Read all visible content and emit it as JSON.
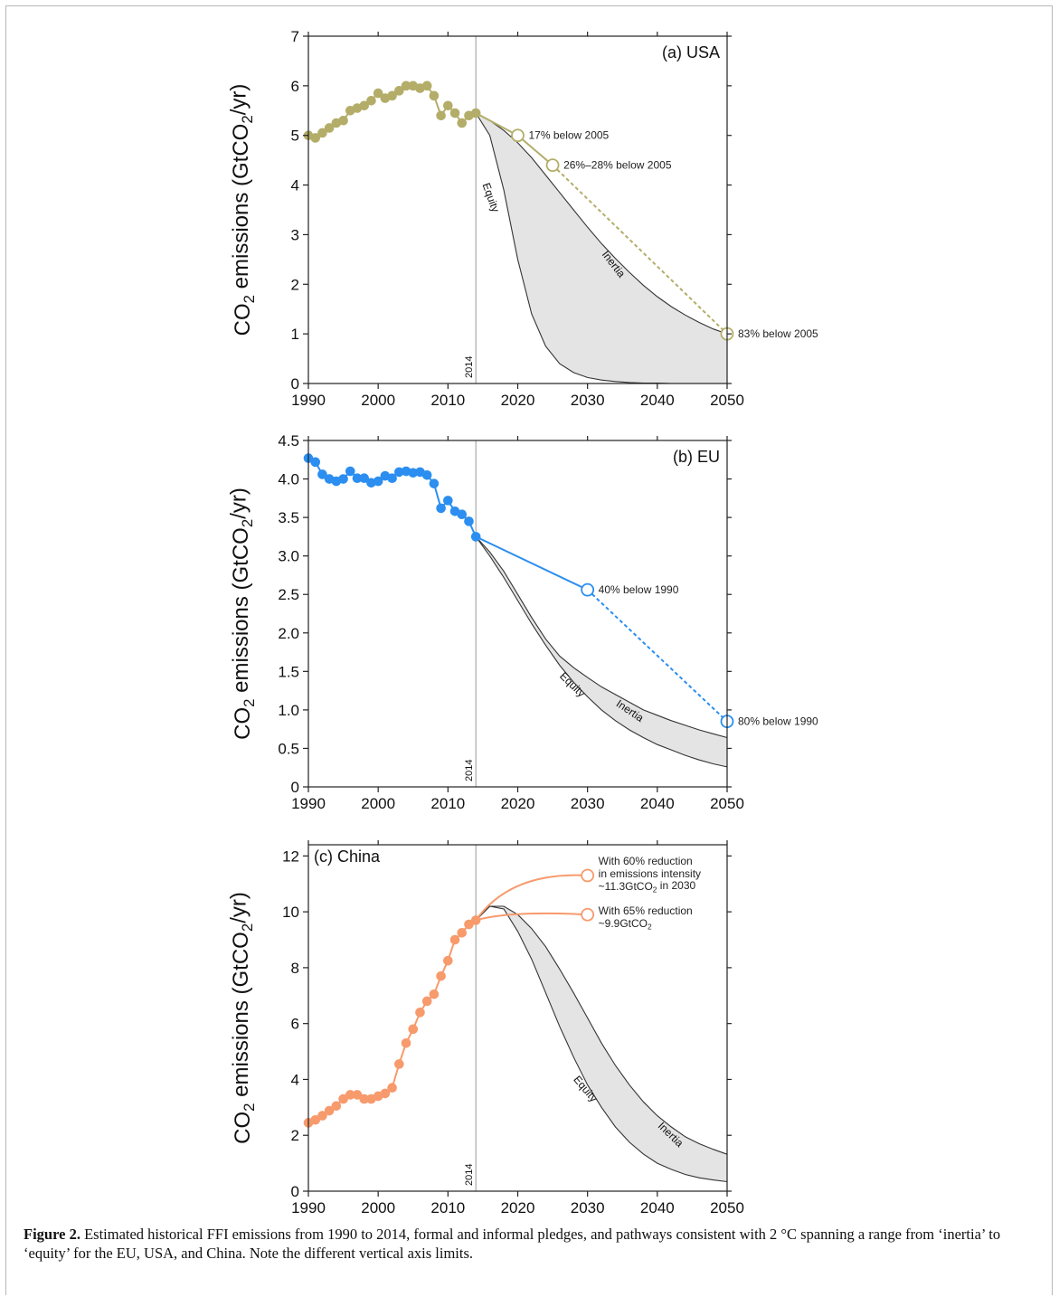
{
  "chart_data": [
    {
      "type": "line",
      "panel_label": "(a) USA",
      "ylabel": "CO₂ emissions (GtCO₂/yr)",
      "xlim": [
        1990,
        2050
      ],
      "ylim": [
        0,
        7
      ],
      "xticks": [
        1990,
        2000,
        2010,
        2020,
        2030,
        2040,
        2050
      ],
      "yticks": [
        0,
        1,
        2,
        3,
        4,
        5,
        6,
        7
      ],
      "ytick_labels": [
        "0",
        "1",
        "2",
        "3",
        "4",
        "5",
        "6",
        "7"
      ],
      "marker_year": 2014,
      "marker_label": "2014",
      "color": "#b3ad69",
      "history": {
        "x": [
          1990,
          1991,
          1992,
          1993,
          1994,
          1995,
          1996,
          1997,
          1998,
          1999,
          2000,
          2001,
          2002,
          2003,
          2004,
          2005,
          2006,
          2007,
          2008,
          2009,
          2010,
          2011,
          2012,
          2013,
          2014
        ],
        "y": [
          5.0,
          4.95,
          5.05,
          5.15,
          5.25,
          5.3,
          5.5,
          5.55,
          5.6,
          5.7,
          5.85,
          5.75,
          5.8,
          5.9,
          6.0,
          6.0,
          5.95,
          6.0,
          5.8,
          5.4,
          5.6,
          5.45,
          5.25,
          5.4,
          5.45
        ]
      },
      "pledges": [
        {
          "year": 2020,
          "value": 5.0,
          "label": "17% below 2005",
          "style": "solid"
        },
        {
          "year": 2025,
          "value": 4.4,
          "label": "26%–28% below 2005",
          "style": "solid"
        },
        {
          "year": 2050,
          "value": 1.0,
          "label": "83% below 2005",
          "style": "dashed"
        }
      ],
      "inertia": {
        "x": [
          2014,
          2016,
          2018,
          2020,
          2022,
          2024,
          2026,
          2028,
          2030,
          2032,
          2034,
          2036,
          2038,
          2040,
          2042,
          2044,
          2046,
          2048,
          2050
        ],
        "y": [
          5.45,
          5.3,
          5.1,
          4.85,
          4.55,
          4.2,
          3.85,
          3.5,
          3.15,
          2.82,
          2.52,
          2.24,
          1.98,
          1.75,
          1.55,
          1.38,
          1.23,
          1.1,
          1.0
        ]
      },
      "equity": {
        "x": [
          2014,
          2016,
          2018,
          2020,
          2022,
          2024,
          2026,
          2028,
          2030,
          2032,
          2034,
          2036,
          2038,
          2040,
          2042,
          2044,
          2046,
          2048,
          2050
        ],
        "y": [
          5.45,
          5.0,
          3.9,
          2.5,
          1.4,
          0.75,
          0.4,
          0.22,
          0.12,
          0.07,
          0.04,
          0.02,
          0.01,
          0.01,
          0.0,
          0.0,
          0.0,
          0.0,
          0.0
        ]
      },
      "inertia_label": "Inertia",
      "equity_label": "Equity"
    },
    {
      "type": "line",
      "panel_label": "(b) EU",
      "ylabel": "CO₂ emissions (GtCO₂/yr)",
      "xlim": [
        1990,
        2050
      ],
      "ylim": [
        0,
        4.5
      ],
      "xticks": [
        1990,
        2000,
        2010,
        2020,
        2030,
        2040,
        2050
      ],
      "yticks": [
        0,
        0.5,
        1.0,
        1.5,
        2.0,
        2.5,
        3.0,
        3.5,
        4.0,
        4.5
      ],
      "ytick_labels": [
        "0",
        "0.5",
        "1.0",
        "1.5",
        "2.0",
        "2.5",
        "3.0",
        "3.5",
        "4.0",
        "4.5"
      ],
      "marker_year": 2014,
      "marker_label": "2014",
      "color": "#2b8ef0",
      "history": {
        "x": [
          1990,
          1991,
          1992,
          1993,
          1994,
          1995,
          1996,
          1997,
          1998,
          1999,
          2000,
          2001,
          2002,
          2003,
          2004,
          2005,
          2006,
          2007,
          2008,
          2009,
          2010,
          2011,
          2012,
          2013,
          2014
        ],
        "y": [
          4.27,
          4.22,
          4.06,
          4.0,
          3.97,
          4.0,
          4.1,
          4.01,
          4.01,
          3.95,
          3.97,
          4.04,
          4.01,
          4.09,
          4.1,
          4.08,
          4.09,
          4.05,
          3.94,
          3.62,
          3.72,
          3.58,
          3.54,
          3.45,
          3.25
        ]
      },
      "pledges": [
        {
          "year": 2030,
          "value": 2.56,
          "label": "40% below 1990",
          "style": "solid"
        },
        {
          "year": 2050,
          "value": 0.85,
          "label": "80% below 1990",
          "style": "dashed"
        }
      ],
      "inertia": {
        "x": [
          2014,
          2016,
          2018,
          2020,
          2022,
          2024,
          2026,
          2028,
          2030,
          2032,
          2034,
          2036,
          2038,
          2040,
          2042,
          2044,
          2046,
          2048,
          2050
        ],
        "y": [
          3.25,
          3.05,
          2.8,
          2.5,
          2.2,
          1.92,
          1.7,
          1.55,
          1.42,
          1.3,
          1.2,
          1.1,
          1.0,
          0.93,
          0.86,
          0.8,
          0.74,
          0.69,
          0.64
        ]
      },
      "equity": {
        "x": [
          2014,
          2016,
          2018,
          2020,
          2022,
          2024,
          2026,
          2028,
          2030,
          2032,
          2034,
          2036,
          2038,
          2040,
          2042,
          2044,
          2046,
          2048,
          2050
        ],
        "y": [
          3.25,
          3.0,
          2.72,
          2.42,
          2.12,
          1.84,
          1.58,
          1.36,
          1.17,
          1.0,
          0.86,
          0.74,
          0.64,
          0.55,
          0.48,
          0.41,
          0.35,
          0.3,
          0.26
        ]
      },
      "inertia_label": "Inertia",
      "equity_label": "Equity"
    },
    {
      "type": "line",
      "panel_label": "(c) China",
      "ylabel": "CO₂ emissions (GtCO₂/yr)",
      "xlim": [
        1990,
        2050
      ],
      "ylim": [
        0,
        12.4
      ],
      "xticks": [
        1990,
        2000,
        2010,
        2020,
        2030,
        2040,
        2050
      ],
      "yticks": [
        0,
        2,
        4,
        6,
        8,
        10,
        12
      ],
      "ytick_labels": [
        "0",
        "2",
        "4",
        "6",
        "8",
        "10",
        "12"
      ],
      "marker_year": 2014,
      "marker_label": "2014",
      "color": "#f79a6c",
      "history": {
        "x": [
          1990,
          1991,
          1992,
          1993,
          1994,
          1995,
          1996,
          1997,
          1998,
          1999,
          2000,
          2001,
          2002,
          2003,
          2004,
          2005,
          2006,
          2007,
          2008,
          2009,
          2010,
          2011,
          2012,
          2013,
          2014
        ],
        "y": [
          2.45,
          2.55,
          2.7,
          2.88,
          3.05,
          3.3,
          3.45,
          3.45,
          3.3,
          3.3,
          3.4,
          3.5,
          3.7,
          4.55,
          5.3,
          5.8,
          6.4,
          6.8,
          7.05,
          7.7,
          8.25,
          9.0,
          9.25,
          9.55,
          9.7
        ]
      },
      "pledges": [
        {
          "year": 2030,
          "value": 11.3,
          "label_lines": [
            "With 60% reduction",
            "in emissions intensity",
            "~11.3GtCO₂ in 2030"
          ],
          "style": "curve"
        },
        {
          "year": 2030,
          "value": 9.9,
          "label_lines": [
            "With 65% reduction",
            "~9.9GtCO₂"
          ],
          "style": "curve"
        }
      ],
      "inertia": {
        "x": [
          2014,
          2016,
          2018,
          2020,
          2022,
          2024,
          2026,
          2028,
          2030,
          2032,
          2034,
          2036,
          2038,
          2040,
          2042,
          2044,
          2046,
          2048,
          2050
        ],
        "y": [
          9.7,
          10.2,
          10.2,
          9.9,
          9.4,
          8.75,
          7.95,
          7.1,
          6.2,
          5.3,
          4.5,
          3.8,
          3.2,
          2.7,
          2.3,
          1.95,
          1.7,
          1.5,
          1.32
        ]
      },
      "equity": {
        "x": [
          2014,
          2016,
          2018,
          2020,
          2022,
          2024,
          2026,
          2028,
          2030,
          2032,
          2034,
          2036,
          2038,
          2040,
          2042,
          2044,
          2046,
          2048,
          2050
        ],
        "y": [
          9.7,
          10.2,
          10.1,
          9.3,
          8.3,
          7.1,
          5.9,
          4.8,
          3.8,
          3.0,
          2.3,
          1.75,
          1.33,
          1.0,
          0.78,
          0.6,
          0.48,
          0.4,
          0.34
        ]
      },
      "inertia_label": "Inertia",
      "equity_label": "Equity"
    }
  ],
  "caption": {
    "label": "Figure 2.",
    "text": " Estimated historical FFI emissions from 1990 to 2014, formal and informal pledges, and pathways consistent with 2 °C spanning a range from ‘inertia’ to ‘equity’ for the EU, USA, and China. Note the different vertical axis limits."
  },
  "colors": {
    "band_fill": "#e4e4e4",
    "band_edge": "#333333",
    "marker_line": "#aaaaaa",
    "axis": "#222222"
  }
}
